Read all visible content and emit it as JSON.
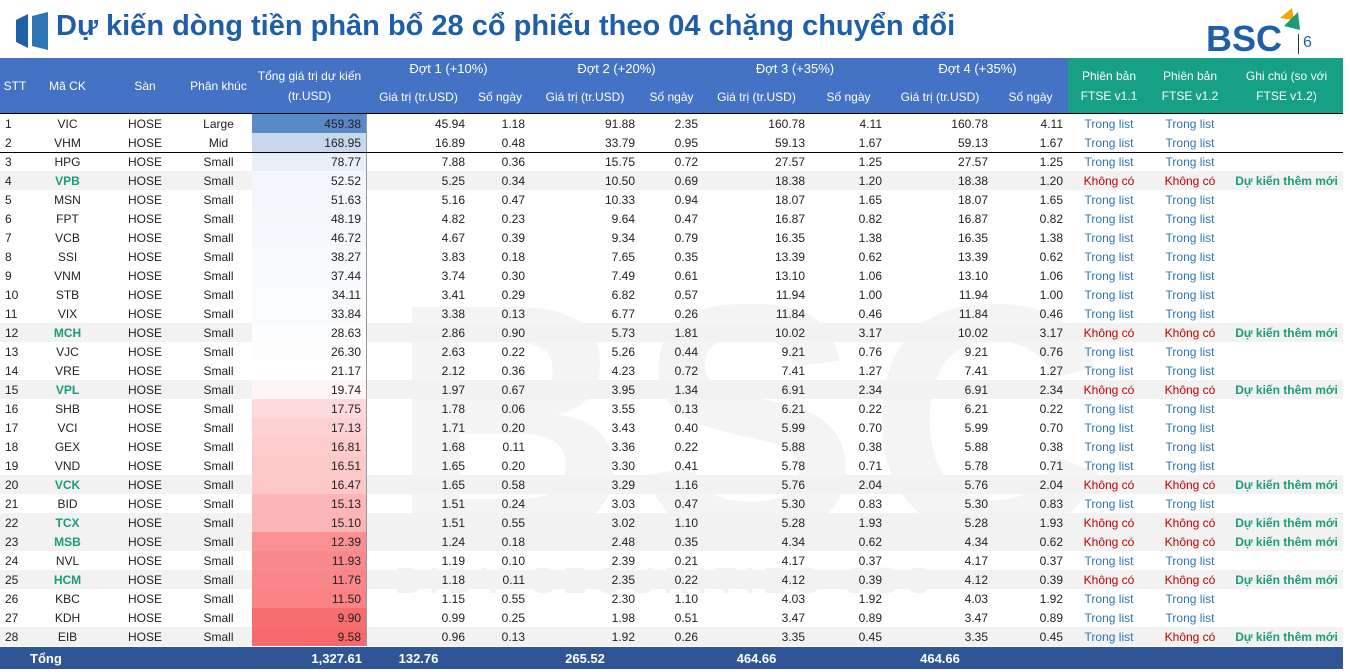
{
  "header": {
    "title": "Dự kiến dòng tiền phân bổ 28 cổ phiếu theo 04 chặng chuyển đổi",
    "logo": "BSC",
    "page": "6"
  },
  "watermark": {
    "big": "BSC",
    "small": "BIDV SECURITIES JSC"
  },
  "table": {
    "group_headers": [
      "Đợt 1 (+10%)",
      "Đợt 2 (+20%)",
      "Đợt 3 (+35%)",
      "Đợt 4 (+35%)"
    ],
    "columns": [
      "STT",
      "Mã CK",
      "Sàn",
      "Phân khúc",
      "Tổng giá trị dự kiến (tr.USD)",
      "Giá trị (tr.USD)",
      "Số ngày",
      "Giá trị (tr.USD)",
      "Số ngày",
      "Giá trị (tr.USD)",
      "Số ngày",
      "Giá trị (tr.USD)",
      "Số ngày",
      "Phiên bản FTSE v1.1",
      "Phiên bản FTSE v1.2",
      "Ghi chú (so với FTSE v1.2)"
    ],
    "status_colors": {
      "Trong list": "#2e75b6",
      "Không có": "#c00000"
    },
    "note_color": "#1a9c7a",
    "heat_colors": [
      "#f8696b",
      "#ffffff",
      "#5a8ac6"
    ],
    "rows": [
      [
        "1",
        "VIC",
        "HOSE",
        "Large",
        "459.38",
        "45.94",
        "1.18",
        "91.88",
        "2.35",
        "160.78",
        "4.11",
        "160.78",
        "4.11",
        "Trong list",
        "Trong list",
        null
      ],
      [
        "2",
        "VHM",
        "HOSE",
        "Mid",
        "168.95",
        "16.89",
        "0.48",
        "33.79",
        "0.95",
        "59.13",
        "1.67",
        "59.13",
        "1.67",
        "Trong list",
        "Trong list",
        null
      ],
      [
        "3",
        "HPG",
        "HOSE",
        "Small",
        "78.77",
        "7.88",
        "0.36",
        "15.75",
        "0.72",
        "27.57",
        "1.25",
        "27.57",
        "1.25",
        "Trong list",
        "Trong list",
        null
      ],
      [
        "4",
        "VPB",
        "HOSE",
        "Small",
        "52.52",
        "5.25",
        "0.34",
        "10.50",
        "0.69",
        "18.38",
        "1.20",
        "18.38",
        "1.20",
        "Không có",
        "Không có",
        "Dự kiến thêm mới"
      ],
      [
        "5",
        "MSN",
        "HOSE",
        "Small",
        "51.63",
        "5.16",
        "0.47",
        "10.33",
        "0.94",
        "18.07",
        "1.65",
        "18.07",
        "1.65",
        "Trong list",
        "Trong list",
        null
      ],
      [
        "6",
        "FPT",
        "HOSE",
        "Small",
        "48.19",
        "4.82",
        "0.23",
        "9.64",
        "0.47",
        "16.87",
        "0.82",
        "16.87",
        "0.82",
        "Trong list",
        "Trong list",
        null
      ],
      [
        "7",
        "VCB",
        "HOSE",
        "Small",
        "46.72",
        "4.67",
        "0.39",
        "9.34",
        "0.79",
        "16.35",
        "1.38",
        "16.35",
        "1.38",
        "Trong list",
        "Trong list",
        null
      ],
      [
        "8",
        "SSI",
        "HOSE",
        "Small",
        "38.27",
        "3.83",
        "0.18",
        "7.65",
        "0.35",
        "13.39",
        "0.62",
        "13.39",
        "0.62",
        "Trong list",
        "Trong list",
        null
      ],
      [
        "9",
        "VNM",
        "HOSE",
        "Small",
        "37.44",
        "3.74",
        "0.30",
        "7.49",
        "0.61",
        "13.10",
        "1.06",
        "13.10",
        "1.06",
        "Trong list",
        "Trong list",
        null
      ],
      [
        "10",
        "STB",
        "HOSE",
        "Small",
        "34.11",
        "3.41",
        "0.29",
        "6.82",
        "0.57",
        "11.94",
        "1.00",
        "11.94",
        "1.00",
        "Trong list",
        "Trong list",
        null
      ],
      [
        "11",
        "VIX",
        "HOSE",
        "Small",
        "33.84",
        "3.38",
        "0.13",
        "6.77",
        "0.26",
        "11.84",
        "0.46",
        "11.84",
        "0.46",
        "Trong list",
        "Trong list",
        null
      ],
      [
        "12",
        "MCH",
        "HOSE",
        "Small",
        "28.63",
        "2.86",
        "0.90",
        "5.73",
        "1.81",
        "10.02",
        "3.17",
        "10.02",
        "3.17",
        "Không có",
        "Không có",
        "Dự kiến thêm mới"
      ],
      [
        "13",
        "VJC",
        "HOSE",
        "Small",
        "26.30",
        "2.63",
        "0.22",
        "5.26",
        "0.44",
        "9.21",
        "0.76",
        "9.21",
        "0.76",
        "Trong list",
        "Trong list",
        null
      ],
      [
        "14",
        "VRE",
        "HOSE",
        "Small",
        "21.17",
        "2.12",
        "0.36",
        "4.23",
        "0.72",
        "7.41",
        "1.27",
        "7.41",
        "1.27",
        "Trong list",
        "Trong list",
        null
      ],
      [
        "15",
        "VPL",
        "HOSE",
        "Small",
        "19.74",
        "1.97",
        "0.67",
        "3.95",
        "1.34",
        "6.91",
        "2.34",
        "6.91",
        "2.34",
        "Không có",
        "Không có",
        "Dự kiến thêm mới"
      ],
      [
        "16",
        "SHB",
        "HOSE",
        "Small",
        "17.75",
        "1.78",
        "0.06",
        "3.55",
        "0.13",
        "6.21",
        "0.22",
        "6.21",
        "0.22",
        "Trong list",
        "Trong list",
        null
      ],
      [
        "17",
        "VCI",
        "HOSE",
        "Small",
        "17.13",
        "1.71",
        "0.20",
        "3.43",
        "0.40",
        "5.99",
        "0.70",
        "5.99",
        "0.70",
        "Trong list",
        "Trong list",
        null
      ],
      [
        "18",
        "GEX",
        "HOSE",
        "Small",
        "16.81",
        "1.68",
        "0.11",
        "3.36",
        "0.22",
        "5.88",
        "0.38",
        "5.88",
        "0.38",
        "Trong list",
        "Trong list",
        null
      ],
      [
        "19",
        "VND",
        "HOSE",
        "Small",
        "16.51",
        "1.65",
        "0.20",
        "3.30",
        "0.41",
        "5.78",
        "0.71",
        "5.78",
        "0.71",
        "Trong list",
        "Trong list",
        null
      ],
      [
        "20",
        "VCK",
        "HOSE",
        "Small",
        "16.47",
        "1.65",
        "0.58",
        "3.29",
        "1.16",
        "5.76",
        "2.04",
        "5.76",
        "2.04",
        "Không có",
        "Không có",
        "Dự kiến thêm mới"
      ],
      [
        "21",
        "BID",
        "HOSE",
        "Small",
        "15.13",
        "1.51",
        "0.24",
        "3.03",
        "0.47",
        "5.30",
        "0.83",
        "5.30",
        "0.83",
        "Trong list",
        "Trong list",
        null
      ],
      [
        "22",
        "TCX",
        "HOSE",
        "Small",
        "15.10",
        "1.51",
        "0.55",
        "3.02",
        "1.10",
        "5.28",
        "1.93",
        "5.28",
        "1.93",
        "Không có",
        "Không có",
        "Dự kiến thêm mới"
      ],
      [
        "23",
        "MSB",
        "HOSE",
        "Small",
        "12.39",
        "1.24",
        "0.18",
        "2.48",
        "0.35",
        "4.34",
        "0.62",
        "4.34",
        "0.62",
        "Không có",
        "Không có",
        "Dự kiến thêm mới"
      ],
      [
        "24",
        "NVL",
        "HOSE",
        "Small",
        "11.93",
        "1.19",
        "0.10",
        "2.39",
        "0.21",
        "4.17",
        "0.37",
        "4.17",
        "0.37",
        "Trong list",
        "Trong list",
        null
      ],
      [
        "25",
        "HCM",
        "HOSE",
        "Small",
        "11.76",
        "1.18",
        "0.11",
        "2.35",
        "0.22",
        "4.12",
        "0.39",
        "4.12",
        "0.39",
        "Không có",
        "Không có",
        "Dự kiến thêm mới"
      ],
      [
        "26",
        "KBC",
        "HOSE",
        "Small",
        "11.50",
        "1.15",
        "0.55",
        "2.30",
        "1.10",
        "4.03",
        "1.92",
        "4.03",
        "1.92",
        "Trong list",
        "Trong list",
        null
      ],
      [
        "27",
        "KDH",
        "HOSE",
        "Small",
        "9.90",
        "0.99",
        "0.25",
        "1.98",
        "0.51",
        "3.47",
        "0.89",
        "3.47",
        "0.89",
        "Trong list",
        "Trong list",
        null
      ],
      [
        "28",
        "EIB",
        "HOSE",
        "Small",
        "9.58",
        "0.96",
        "0.13",
        "1.92",
        "0.26",
        "3.35",
        "0.45",
        "3.35",
        "0.45",
        "Trong list",
        "Không có",
        "Dự kiến thêm mới"
      ]
    ],
    "total": {
      "label": "Tổng",
      "values": [
        "1,327.61",
        "132.76",
        "265.52",
        "464.66",
        "464.66"
      ]
    }
  }
}
